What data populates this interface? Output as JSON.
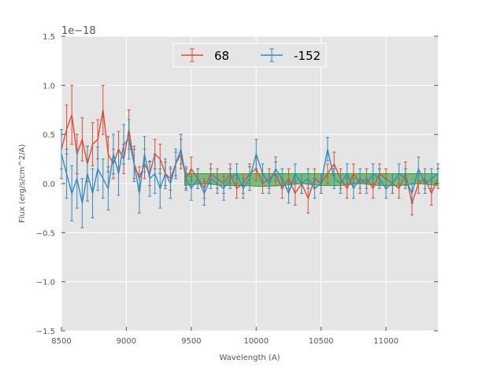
{
  "chart_data": {
    "type": "line",
    "title": "",
    "xlabel": "Wavelength (A)",
    "ylabel": "Flux (erg/s/cm^2/A)",
    "offset_text": "1e−18",
    "xlim": [
      8500,
      11400
    ],
    "ylim": [
      -1.5,
      1.5
    ],
    "xticks": [
      8500,
      9000,
      9500,
      10000,
      10500,
      11000
    ],
    "yticks": [
      -1.5,
      -1.0,
      -0.5,
      0.0,
      0.5,
      1.0,
      1.5
    ],
    "ytick_labels": [
      "−1.5",
      "−1.0",
      "−0.5",
      "0.0",
      "0.5",
      "1.0",
      "1.5"
    ],
    "grid": true,
    "legend_position": "top-center",
    "series": [
      {
        "name": "68",
        "color": "#e24a33",
        "x": [
          8500,
          8540,
          8580,
          8620,
          8660,
          8700,
          8740,
          8780,
          8820,
          8860,
          8900,
          8940,
          8980,
          9020,
          9060,
          9100,
          9140,
          9180,
          9220,
          9260,
          9300,
          9340,
          9380,
          9420,
          9460,
          9500,
          9550,
          9600,
          9650,
          9700,
          9750,
          9800,
          9850,
          9900,
          9950,
          10000,
          10050,
          10100,
          10150,
          10200,
          10250,
          10300,
          10350,
          10400,
          10450,
          10500,
          10550,
          10600,
          10650,
          10700,
          10750,
          10800,
          10850,
          10900,
          10950,
          11000,
          11050,
          11100,
          11150,
          11200,
          11250,
          11300,
          11350,
          11400
        ],
        "y": [
          0.35,
          0.55,
          0.7,
          0.3,
          0.45,
          0.2,
          0.4,
          0.45,
          0.75,
          0.3,
          0.2,
          0.35,
          0.25,
          0.55,
          0.2,
          0.05,
          0.2,
          0.1,
          0.3,
          0.25,
          0.1,
          0.05,
          0.2,
          0.3,
          0.05,
          0.15,
          0.05,
          -0.05,
          0.1,
          0.05,
          0.0,
          0.1,
          -0.05,
          0.0,
          0.1,
          0.15,
          0.0,
          0.05,
          0.1,
          -0.05,
          0.05,
          -0.1,
          0.0,
          -0.15,
          0.05,
          0.0,
          0.1,
          0.2,
          0.05,
          -0.05,
          0.1,
          0.0,
          0.05,
          -0.05,
          0.1,
          0.05,
          0.0,
          -0.05,
          0.1,
          -0.2,
          0.0,
          0.05,
          -0.1,
          0.05
        ],
        "err": [
          0.2,
          0.25,
          0.3,
          0.2,
          0.22,
          0.18,
          0.22,
          0.2,
          0.25,
          0.18,
          0.15,
          0.18,
          0.15,
          0.2,
          0.15,
          0.12,
          0.15,
          0.12,
          0.15,
          0.15,
          0.12,
          0.12,
          0.12,
          0.15,
          0.1,
          0.12,
          0.1,
          0.1,
          0.1,
          0.1,
          0.1,
          0.1,
          0.1,
          0.1,
          0.1,
          0.12,
          0.1,
          0.1,
          0.12,
          0.1,
          0.1,
          0.12,
          0.1,
          0.15,
          0.1,
          0.1,
          0.1,
          0.12,
          0.1,
          0.1,
          0.1,
          0.1,
          0.1,
          0.1,
          0.1,
          0.1,
          0.1,
          0.1,
          0.12,
          0.12,
          0.1,
          0.1,
          0.12,
          0.1
        ]
      },
      {
        "name": "-152",
        "color": "#348abd",
        "x": [
          8500,
          8540,
          8580,
          8620,
          8660,
          8700,
          8740,
          8780,
          8820,
          8860,
          8900,
          8940,
          8980,
          9020,
          9060,
          9100,
          9140,
          9180,
          9220,
          9260,
          9300,
          9340,
          9380,
          9420,
          9460,
          9500,
          9550,
          9600,
          9650,
          9700,
          9750,
          9800,
          9850,
          9900,
          9950,
          10000,
          10050,
          10100,
          10150,
          10200,
          10250,
          10300,
          10350,
          10400,
          10450,
          10500,
          10550,
          10600,
          10650,
          10700,
          10750,
          10800,
          10850,
          10900,
          10950,
          11000,
          11050,
          11100,
          11150,
          11200,
          11250,
          11300,
          11350,
          11400
        ],
        "y": [
          0.3,
          0.1,
          -0.1,
          0.05,
          -0.2,
          0.1,
          -0.1,
          0.15,
          0.05,
          -0.05,
          0.3,
          0.1,
          0.4,
          0.45,
          0.2,
          -0.1,
          0.3,
          0.05,
          0.1,
          -0.05,
          0.1,
          0.0,
          0.2,
          0.35,
          0.05,
          -0.05,
          0.05,
          -0.1,
          0.05,
          0.0,
          -0.05,
          0.05,
          0.1,
          -0.05,
          0.05,
          0.3,
          0.1,
          0.0,
          0.15,
          0.05,
          -0.1,
          0.1,
          0.0,
          0.05,
          -0.05,
          0.0,
          0.35,
          0.05,
          0.0,
          0.1,
          -0.05,
          0.05,
          0.0,
          0.1,
          0.05,
          -0.05,
          0.0,
          0.1,
          0.05,
          -0.1,
          0.15,
          0.0,
          0.05,
          0.1
        ],
        "err": [
          0.25,
          0.25,
          0.28,
          0.3,
          0.25,
          0.28,
          0.25,
          0.22,
          0.2,
          0.22,
          0.2,
          0.22,
          0.2,
          0.2,
          0.18,
          0.2,
          0.18,
          0.18,
          0.2,
          0.2,
          0.15,
          0.15,
          0.15,
          0.15,
          0.12,
          0.12,
          0.1,
          0.12,
          0.1,
          0.1,
          0.12,
          0.1,
          0.1,
          0.1,
          0.12,
          0.15,
          0.1,
          0.1,
          0.12,
          0.1,
          0.1,
          0.1,
          0.1,
          0.1,
          0.1,
          0.1,
          0.12,
          0.1,
          0.1,
          0.1,
          0.1,
          0.1,
          0.1,
          0.1,
          0.1,
          0.1,
          0.1,
          0.1,
          0.1,
          0.1,
          0.12,
          0.1,
          0.1,
          0.1
        ]
      }
    ],
    "band": {
      "color": "#2ca02c",
      "x": [
        9450,
        9600,
        9750,
        9900,
        10050,
        10200,
        10350,
        10500,
        10650,
        10800,
        10950,
        11100,
        11250,
        11400
      ],
      "lower": [
        -0.02,
        0.0,
        -0.02,
        -0.02,
        -0.03,
        -0.02,
        0.0,
        -0.02,
        -0.02,
        0.0,
        -0.02,
        -0.02,
        0.0,
        -0.02
      ],
      "upper": [
        0.1,
        0.1,
        0.1,
        0.1,
        0.1,
        0.1,
        0.1,
        0.1,
        0.1,
        0.1,
        0.1,
        0.1,
        0.1,
        0.1
      ]
    }
  }
}
